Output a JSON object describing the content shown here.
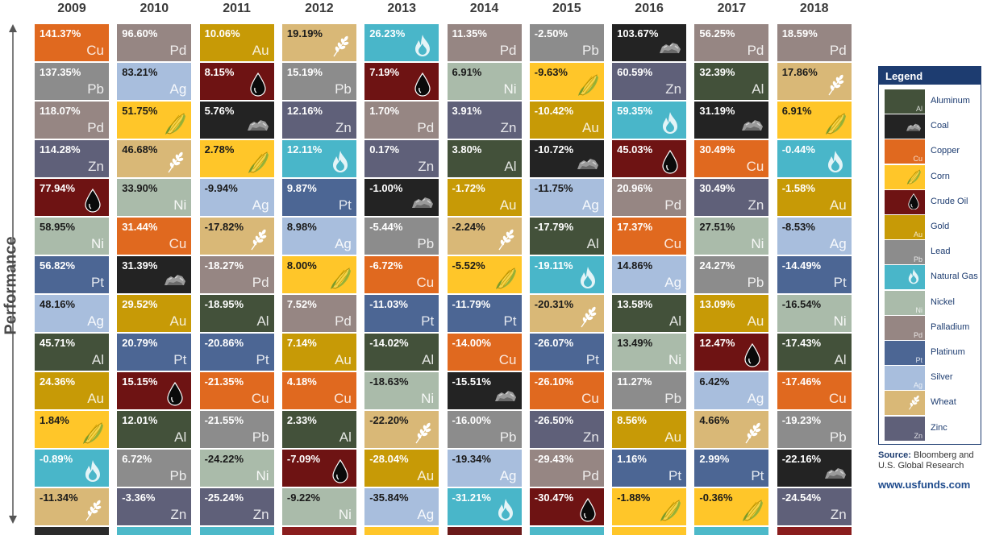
{
  "chart_data": {
    "type": "table",
    "ylabel": "Performance",
    "years": [
      "2009",
      "2010",
      "2011",
      "2012",
      "2013",
      "2014",
      "2015",
      "2016",
      "2017",
      "2018"
    ],
    "columns": [
      {
        "year": "2009",
        "cells": [
          {
            "pct": "141.37%",
            "c": "Cu"
          },
          {
            "pct": "137.35%",
            "c": "Pb"
          },
          {
            "pct": "118.07%",
            "c": "Pd"
          },
          {
            "pct": "114.28%",
            "c": "Zn"
          },
          {
            "pct": "77.94%",
            "c": "Crude Oil"
          },
          {
            "pct": "58.95%",
            "c": "Ni"
          },
          {
            "pct": "56.82%",
            "c": "Pt"
          },
          {
            "pct": "48.16%",
            "c": "Ag"
          },
          {
            "pct": "45.71%",
            "c": "Al"
          },
          {
            "pct": "24.36%",
            "c": "Au"
          },
          {
            "pct": "1.84%",
            "c": "Corn"
          },
          {
            "pct": "-0.89%",
            "c": "Natural Gas"
          },
          {
            "pct": "-11.34%",
            "c": "Wheat"
          }
        ]
      },
      {
        "year": "2010",
        "cells": [
          {
            "pct": "96.60%",
            "c": "Pd"
          },
          {
            "pct": "83.21%",
            "c": "Ag"
          },
          {
            "pct": "51.75%",
            "c": "Corn"
          },
          {
            "pct": "46.68%",
            "c": "Wheat"
          },
          {
            "pct": "33.90%",
            "c": "Ni"
          },
          {
            "pct": "31.44%",
            "c": "Cu"
          },
          {
            "pct": "31.39%",
            "c": "Coal"
          },
          {
            "pct": "29.52%",
            "c": "Au"
          },
          {
            "pct": "20.79%",
            "c": "Pt"
          },
          {
            "pct": "15.15%",
            "c": "Crude Oil"
          },
          {
            "pct": "12.01%",
            "c": "Al"
          },
          {
            "pct": "6.72%",
            "c": "Pb"
          },
          {
            "pct": "-3.36%",
            "c": "Zn"
          }
        ]
      },
      {
        "year": "2011",
        "cells": [
          {
            "pct": "10.06%",
            "c": "Au"
          },
          {
            "pct": "8.15%",
            "c": "Crude Oil"
          },
          {
            "pct": "5.76%",
            "c": "Coal"
          },
          {
            "pct": "2.78%",
            "c": "Corn"
          },
          {
            "pct": "-9.94%",
            "c": "Ag"
          },
          {
            "pct": "-17.82%",
            "c": "Wheat"
          },
          {
            "pct": "-18.27%",
            "c": "Pd"
          },
          {
            "pct": "-18.95%",
            "c": "Al"
          },
          {
            "pct": "-20.86%",
            "c": "Pt"
          },
          {
            "pct": "-21.35%",
            "c": "Cu"
          },
          {
            "pct": "-21.55%",
            "c": "Pb"
          },
          {
            "pct": "-24.22%",
            "c": "Ni"
          },
          {
            "pct": "-25.24%",
            "c": "Zn"
          }
        ]
      },
      {
        "year": "2012",
        "cells": [
          {
            "pct": "19.19%",
            "c": "Wheat"
          },
          {
            "pct": "15.19%",
            "c": "Pb"
          },
          {
            "pct": "12.16%",
            "c": "Zn"
          },
          {
            "pct": "12.11%",
            "c": "Natural Gas"
          },
          {
            "pct": "9.87%",
            "c": "Pt"
          },
          {
            "pct": "8.98%",
            "c": "Ag"
          },
          {
            "pct": "8.00%",
            "c": "Corn"
          },
          {
            "pct": "7.52%",
            "c": "Pd"
          },
          {
            "pct": "7.14%",
            "c": "Au"
          },
          {
            "pct": "4.18%",
            "c": "Cu"
          },
          {
            "pct": "2.33%",
            "c": "Al"
          },
          {
            "pct": "-7.09%",
            "c": "Crude Oil"
          },
          {
            "pct": "-9.22%",
            "c": "Ni"
          }
        ]
      },
      {
        "year": "2013",
        "cells": [
          {
            "pct": "26.23%",
            "c": "Natural Gas"
          },
          {
            "pct": "7.19%",
            "c": "Crude Oil"
          },
          {
            "pct": "1.70%",
            "c": "Pd"
          },
          {
            "pct": "0.17%",
            "c": "Zn"
          },
          {
            "pct": "-1.00%",
            "c": "Coal"
          },
          {
            "pct": "-5.44%",
            "c": "Pb"
          },
          {
            "pct": "-6.72%",
            "c": "Cu"
          },
          {
            "pct": "-11.03%",
            "c": "Pt"
          },
          {
            "pct": "-14.02%",
            "c": "Al"
          },
          {
            "pct": "-18.63%",
            "c": "Ni"
          },
          {
            "pct": "-22.20%",
            "c": "Wheat"
          },
          {
            "pct": "-28.04%",
            "c": "Au"
          },
          {
            "pct": "-35.84%",
            "c": "Ag"
          }
        ]
      },
      {
        "year": "2014",
        "cells": [
          {
            "pct": "11.35%",
            "c": "Pd"
          },
          {
            "pct": "6.91%",
            "c": "Ni"
          },
          {
            "pct": "3.91%",
            "c": "Zn"
          },
          {
            "pct": "3.80%",
            "c": "Al"
          },
          {
            "pct": "-1.72%",
            "c": "Au"
          },
          {
            "pct": "-2.24%",
            "c": "Wheat"
          },
          {
            "pct": "-5.52%",
            "c": "Corn"
          },
          {
            "pct": "-11.79%",
            "c": "Pt"
          },
          {
            "pct": "-14.00%",
            "c": "Cu"
          },
          {
            "pct": "-15.51%",
            "c": "Coal"
          },
          {
            "pct": "-16.00%",
            "c": "Pb"
          },
          {
            "pct": "-19.34%",
            "c": "Ag"
          },
          {
            "pct": "-31.21%",
            "c": "Natural Gas"
          }
        ]
      },
      {
        "year": "2015",
        "cells": [
          {
            "pct": "-2.50%",
            "c": "Pb"
          },
          {
            "pct": "-9.63%",
            "c": "Corn"
          },
          {
            "pct": "-10.42%",
            "c": "Au"
          },
          {
            "pct": "-10.72%",
            "c": "Coal"
          },
          {
            "pct": "-11.75%",
            "c": "Ag"
          },
          {
            "pct": "-17.79%",
            "c": "Al"
          },
          {
            "pct": "-19.11%",
            "c": "Natural Gas"
          },
          {
            "pct": "-20.31%",
            "c": "Wheat"
          },
          {
            "pct": "-26.07%",
            "c": "Pt"
          },
          {
            "pct": "-26.10%",
            "c": "Cu"
          },
          {
            "pct": "-26.50%",
            "c": "Zn"
          },
          {
            "pct": "-29.43%",
            "c": "Pd"
          },
          {
            "pct": "-30.47%",
            "c": "Crude Oil"
          }
        ]
      },
      {
        "year": "2016",
        "cells": [
          {
            "pct": "103.67%",
            "c": "Coal"
          },
          {
            "pct": "60.59%",
            "c": "Zn"
          },
          {
            "pct": "59.35%",
            "c": "Natural Gas"
          },
          {
            "pct": "45.03%",
            "c": "Crude Oil"
          },
          {
            "pct": "20.96%",
            "c": "Pd"
          },
          {
            "pct": "17.37%",
            "c": "Cu"
          },
          {
            "pct": "14.86%",
            "c": "Ag"
          },
          {
            "pct": "13.58%",
            "c": "Al"
          },
          {
            "pct": "13.49%",
            "c": "Ni"
          },
          {
            "pct": "11.27%",
            "c": "Pb"
          },
          {
            "pct": "8.56%",
            "c": "Au"
          },
          {
            "pct": "1.16%",
            "c": "Pt"
          },
          {
            "pct": "-1.88%",
            "c": "Corn"
          }
        ]
      },
      {
        "year": "2017",
        "cells": [
          {
            "pct": "56.25%",
            "c": "Pd"
          },
          {
            "pct": "32.39%",
            "c": "Al"
          },
          {
            "pct": "31.19%",
            "c": "Coal"
          },
          {
            "pct": "30.49%",
            "c": "Cu"
          },
          {
            "pct": "30.49%",
            "c": "Zn"
          },
          {
            "pct": "27.51%",
            "c": "Ni"
          },
          {
            "pct": "24.27%",
            "c": "Pb"
          },
          {
            "pct": "13.09%",
            "c": "Au"
          },
          {
            "pct": "12.47%",
            "c": "Crude Oil"
          },
          {
            "pct": "6.42%",
            "c": "Ag"
          },
          {
            "pct": "4.66%",
            "c": "Wheat"
          },
          {
            "pct": "2.99%",
            "c": "Pt"
          },
          {
            "pct": "-0.36%",
            "c": "Corn"
          }
        ]
      },
      {
        "year": "2018",
        "cells": [
          {
            "pct": "18.59%",
            "c": "Pd"
          },
          {
            "pct": "17.86%",
            "c": "Wheat"
          },
          {
            "pct": "6.91%",
            "c": "Corn"
          },
          {
            "pct": "-0.44%",
            "c": "Natural Gas"
          },
          {
            "pct": "-1.58%",
            "c": "Au"
          },
          {
            "pct": "-8.53%",
            "c": "Ag"
          },
          {
            "pct": "-14.49%",
            "c": "Pt"
          },
          {
            "pct": "-16.54%",
            "c": "Ni"
          },
          {
            "pct": "-17.43%",
            "c": "Al"
          },
          {
            "pct": "-17.46%",
            "c": "Cu"
          },
          {
            "pct": "-19.23%",
            "c": "Pb"
          },
          {
            "pct": "-22.16%",
            "c": "Coal"
          },
          {
            "pct": "-24.54%",
            "c": "Zn"
          }
        ]
      }
    ],
    "partial_row_colors": [
      "#2b2b2b",
      "#4db9c9",
      "#4db9c9",
      "#8a1d1d",
      "#ffc629",
      "#6b1a1a",
      "#4db9c9",
      "#ffc629",
      "#4db9c9",
      "#8a1d1d"
    ]
  },
  "commodities": {
    "Al": {
      "name": "Aluminum",
      "sym": "Al",
      "color": "#43513a",
      "text": "#ffffff",
      "icon": ""
    },
    "Coal": {
      "name": "Coal",
      "sym": "",
      "color": "#232323",
      "text": "#ffffff",
      "icon": "coal-icon"
    },
    "Cu": {
      "name": "Copper",
      "sym": "Cu",
      "color": "#e0691f",
      "text": "#ffffff",
      "icon": ""
    },
    "Corn": {
      "name": "Corn",
      "sym": "",
      "color": "#ffc629",
      "text": "#1a1a1a",
      "icon": "corn-icon"
    },
    "Crude Oil": {
      "name": "Crude Oil",
      "sym": "",
      "color": "#6e1313",
      "text": "#ffffff",
      "icon": "oil-drop-icon"
    },
    "Au": {
      "name": "Gold",
      "sym": "Au",
      "color": "#c79a06",
      "text": "#ffffff",
      "icon": ""
    },
    "Pb": {
      "name": "Lead",
      "sym": "Pb",
      "color": "#8c8c8c",
      "text": "#ffffff",
      "icon": ""
    },
    "Natural Gas": {
      "name": "Natural Gas",
      "sym": "",
      "color": "#49b6c9",
      "text": "#ffffff",
      "icon": "flame-icon"
    },
    "Ni": {
      "name": "Nickel",
      "sym": "Ni",
      "color": "#aabbaa",
      "text": "#1a1a1a",
      "icon": ""
    },
    "Pd": {
      "name": "Palladium",
      "sym": "Pd",
      "color": "#968683",
      "text": "#ffffff",
      "icon": ""
    },
    "Pt": {
      "name": "Platinum",
      "sym": "Pt",
      "color": "#4c6694",
      "text": "#ffffff",
      "icon": ""
    },
    "Ag": {
      "name": "Silver",
      "sym": "Ag",
      "color": "#a8bedd",
      "text": "#1a1a1a",
      "icon": ""
    },
    "Wheat": {
      "name": "Wheat",
      "sym": "",
      "color": "#d9b877",
      "text": "#1a1a1a",
      "icon": "wheat-icon"
    },
    "Zn": {
      "name": "Zinc",
      "sym": "Zn",
      "color": "#5f6079",
      "text": "#ffffff",
      "icon": ""
    }
  },
  "legend": {
    "title": "Legend",
    "order": [
      "Al",
      "Coal",
      "Cu",
      "Corn",
      "Crude Oil",
      "Au",
      "Pb",
      "Natural Gas",
      "Ni",
      "Pd",
      "Pt",
      "Ag",
      "Wheat",
      "Zn"
    ]
  },
  "source": {
    "label": "Source:",
    "text": "Bloomberg and U.S. Global Research"
  },
  "website": "www.usfunds.com"
}
